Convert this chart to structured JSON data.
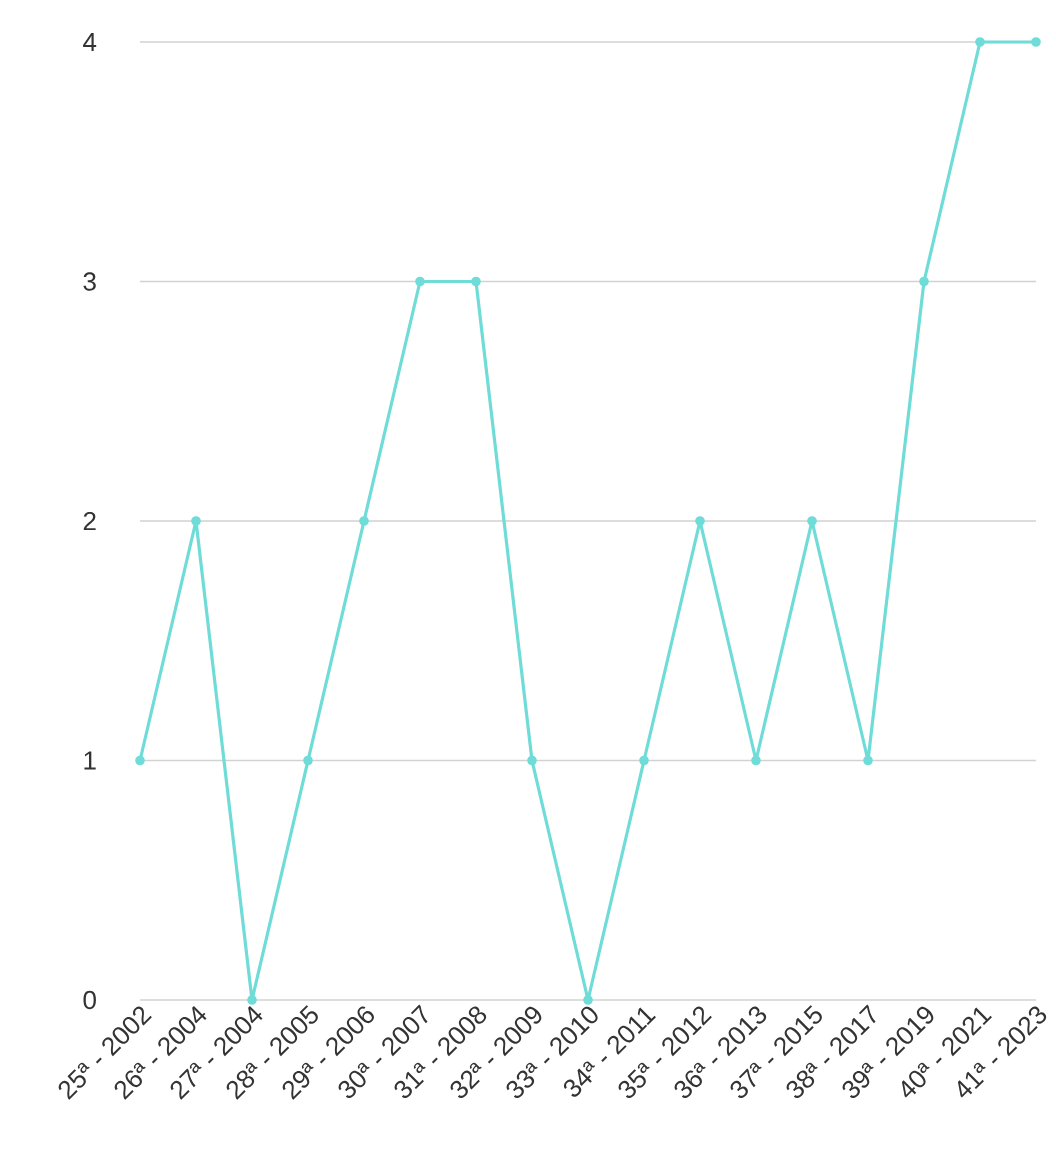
{
  "chart_data": {
    "type": "line",
    "categories": [
      "25ª - 2002",
      "26ª - 2004",
      "27ª - 2004",
      "28ª - 2005",
      "29ª - 2006",
      "30ª - 2007",
      "31ª - 2008",
      "32ª - 2009",
      "33ª - 2010",
      "34ª - 2011",
      "35ª - 2012",
      "36ª - 2013",
      "37ª - 2015",
      "38ª - 2017",
      "39ª - 2019",
      "40ª - 2021",
      "41ª - 2023"
    ],
    "series": [
      {
        "color": "#6fdcd8",
        "values": [
          1,
          2,
          0,
          1,
          2,
          3,
          3,
          1,
          0,
          1,
          2,
          1,
          2,
          1,
          3,
          4,
          4
        ]
      }
    ],
    "ylim": [
      0,
      4
    ],
    "yticks": [
      0,
      1,
      2,
      3,
      4
    ],
    "grid": "y",
    "marker": "circle",
    "line_style": "solid"
  }
}
